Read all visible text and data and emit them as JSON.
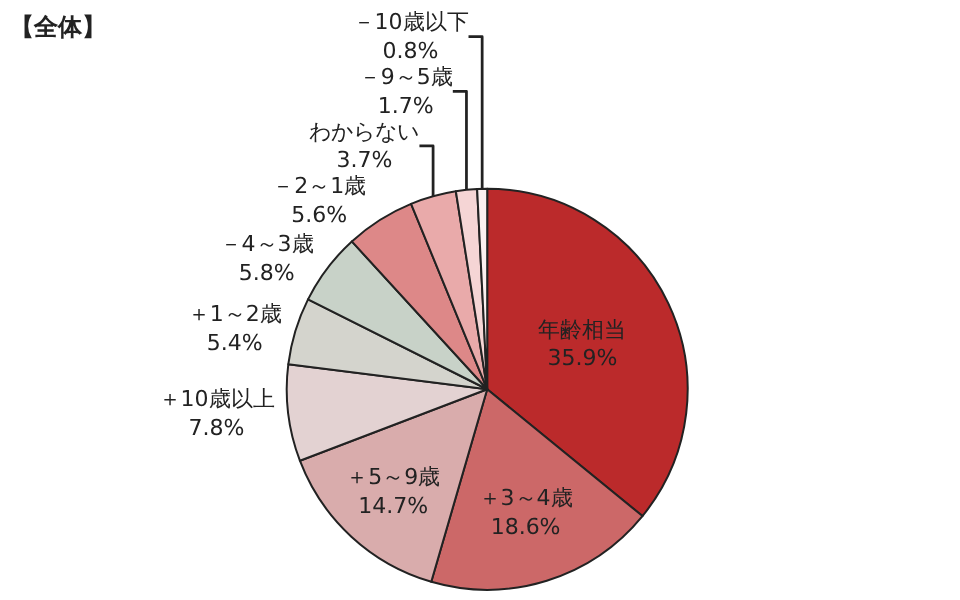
{
  "chart_data": {
    "type": "pie",
    "title": "【全体】",
    "categories": [
      "年齢相当",
      "＋3～4歳",
      "＋5～9歳",
      "＋10歳以上",
      "＋1～2歳",
      "－4～3歳",
      "－2～1歳",
      "わからない",
      "－9～5歳",
      "－10歳以下"
    ],
    "values": [
      35.9,
      18.6,
      14.7,
      7.8,
      5.4,
      5.8,
      5.6,
      3.7,
      1.7,
      0.8
    ],
    "value_labels": [
      "35.9%",
      "18.6%",
      "14.7%",
      "7.8%",
      "5.4%",
      "5.8%",
      "5.6%",
      "3.7%",
      "1.7%",
      "0.8%"
    ],
    "colors": [
      "#bb2a2b",
      "#cc6868",
      "#d9acac",
      "#e3d2d2",
      "#d4d4cd",
      "#c8d2c8",
      "#dd8888",
      "#e9aaaa",
      "#f5d5d5",
      "#fbf0f0"
    ],
    "legend": false
  }
}
